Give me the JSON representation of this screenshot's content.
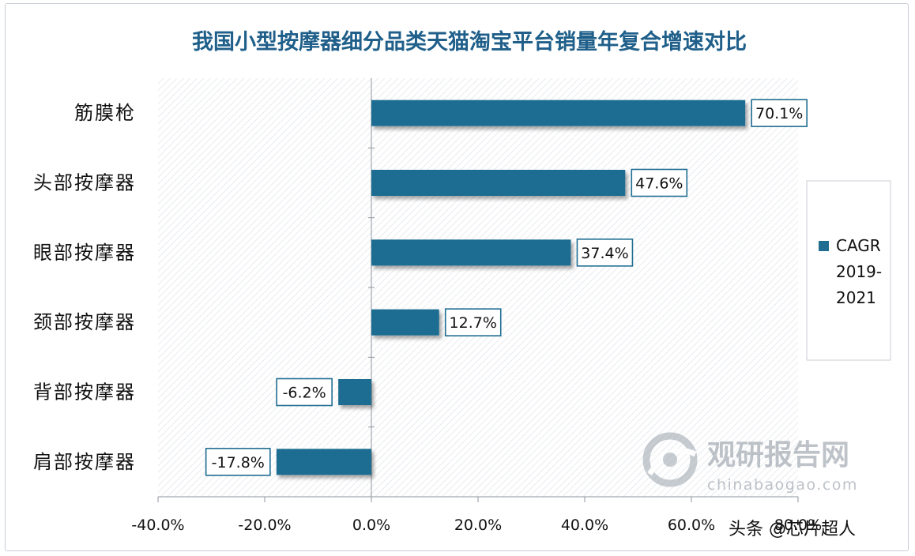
{
  "chart_data": {
    "type": "bar",
    "orientation": "horizontal",
    "title": "我国小型按摩器细分品类天猫淘宝平台销量年复合增速对比",
    "categories": [
      "筋膜枪",
      "头部按摩器",
      "眼部按摩器",
      "颈部按摩器",
      "背部按摩器",
      "肩部按摩器"
    ],
    "series": [
      {
        "name": "CAGR 2019-2021",
        "values": [
          70.1,
          47.6,
          37.4,
          12.7,
          -6.2,
          -17.8
        ],
        "data_labels": [
          "70.1%",
          "47.6%",
          "37.4%",
          "12.7%",
          "-6.2%",
          "-17.8%"
        ]
      }
    ],
    "xlim": [
      -40,
      80
    ],
    "tick_values": [
      -40,
      -20,
      0,
      20,
      40,
      60,
      80
    ],
    "tick_labels": [
      "-40.0%",
      "-20.0%",
      "0.0%",
      "20.0%",
      "40.0%",
      "60.0%",
      "80.0%"
    ],
    "legend": {
      "position": "right",
      "label_lines": [
        "CAGR",
        "2019-",
        "2021"
      ]
    },
    "watermark": {
      "brand": "观研报告网",
      "url": "chinabaogao.com"
    },
    "source_tag": "头条 @芯片超人",
    "colors": {
      "bar": "#1f6d91",
      "title": "#1f5f8a",
      "label_border": "#1f6d91",
      "text": "#111111"
    }
  }
}
